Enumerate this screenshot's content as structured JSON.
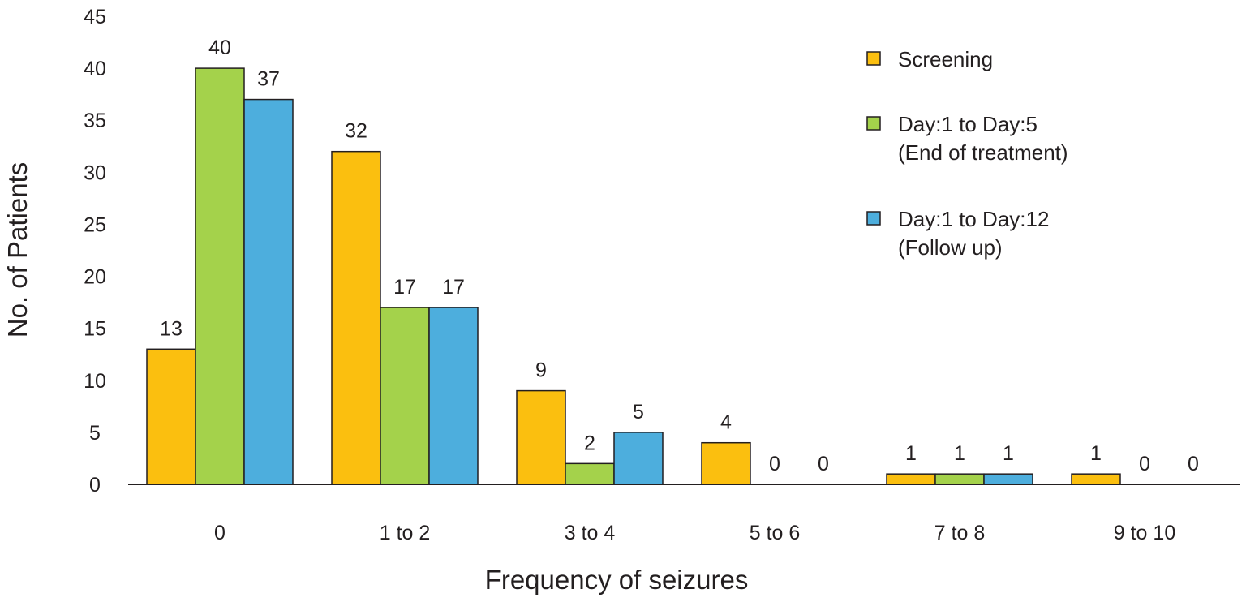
{
  "chart_data": {
    "type": "bar",
    "title": "",
    "xlabel": "Frequency of seizures",
    "ylabel": "No. of Patients",
    "ylim": [
      0,
      45
    ],
    "yticks": [
      0,
      5,
      10,
      15,
      20,
      25,
      30,
      35,
      40,
      45
    ],
    "categories": [
      "0",
      "1 to 2",
      "3 to 4",
      "5 to 6",
      "7 to 8",
      "9 to 10"
    ],
    "grid": false,
    "legend_position": "top-right",
    "series": [
      {
        "name": "Screening",
        "legend_lines": [
          "Screening"
        ],
        "color": "#fbbf0f",
        "values": [
          13,
          32,
          9,
          4,
          1,
          1
        ]
      },
      {
        "name": "Day:1 to Day:5 (End of treatment)",
        "legend_lines": [
          "Day:1 to Day:5",
          "(End of treatment)"
        ],
        "color": "#a4d24b",
        "values": [
          40,
          17,
          2,
          0,
          1,
          0
        ]
      },
      {
        "name": "Day:1 to Day:12 (Follow up)",
        "legend_lines": [
          "Day:1 to Day:12",
          "(Follow up)"
        ],
        "color": "#4daedd",
        "values": [
          37,
          17,
          5,
          0,
          1,
          0
        ]
      }
    ]
  }
}
